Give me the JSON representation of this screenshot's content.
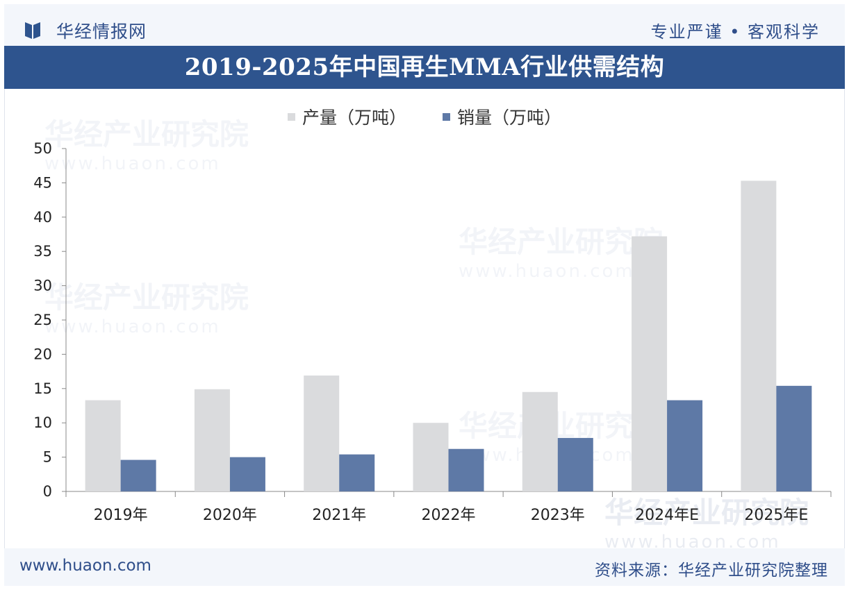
{
  "header": {
    "brand": "华经情报网",
    "slogan": "专业严谨 • 客观科学"
  },
  "footer": {
    "site": "www.huaon.com",
    "source": "资料来源：华经产业研究院整理"
  },
  "watermark": {
    "text": "华经产业研究院",
    "sub": "www.huaon.com"
  },
  "colors": {
    "header_bg": "#f3f6fb",
    "title_bg": "#2e548e",
    "production": "#dadbdd",
    "sales": "#5e79a6",
    "brand": "#2f4e8a"
  },
  "chart_data": {
    "type": "bar",
    "title": "2019-2025年中国再生MMA行业供需结构",
    "categories": [
      "2019年",
      "2020年",
      "2021年",
      "2022年",
      "2023年",
      "2024年E",
      "2025年E"
    ],
    "series": [
      {
        "name": "产量（万吨）",
        "values": [
          13.3,
          14.9,
          16.9,
          10.0,
          14.5,
          37.2,
          45.3
        ]
      },
      {
        "name": "销量（万吨）",
        "values": [
          4.6,
          5.0,
          5.4,
          6.2,
          7.8,
          13.3,
          15.4
        ]
      }
    ],
    "ylim": [
      0,
      50
    ],
    "yticks": [
      0,
      5,
      10,
      15,
      20,
      25,
      30,
      35,
      40,
      45,
      50
    ],
    "legend_position": "top-center",
    "grid": false
  }
}
